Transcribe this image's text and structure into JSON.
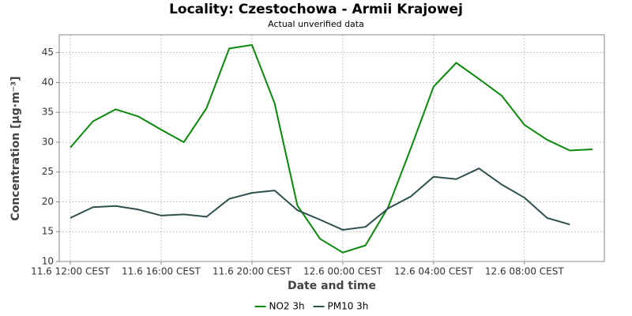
{
  "chart_data": {
    "type": "line",
    "title": "Locality: Czestochowa - Armii Krajowej",
    "subtitle": "Actual unverified data",
    "x_label": "Date and time",
    "y_label": "Concentration [µg·m⁻³]",
    "categories": [
      "11.6 12:00 CEST",
      null,
      null,
      null,
      "11.6 16:00 CEST",
      null,
      null,
      null,
      "11.6 20:00 CEST",
      null,
      null,
      null,
      "12.6 00:00 CEST",
      null,
      null,
      null,
      "12.6 04:00 CEST",
      null,
      null,
      null,
      "12.6 08:00 CEST",
      null,
      null,
      null
    ],
    "series": [
      {
        "name": "NO2 3h",
        "color": "#0a8a0a",
        "values": [
          29.1,
          33.5,
          35.5,
          34.3,
          32.1,
          30.0,
          35.7,
          45.7,
          46.3,
          36.5,
          19.4,
          13.8,
          11.5,
          12.7,
          19.1,
          29.0,
          39.3,
          43.3,
          40.6,
          37.8,
          32.9,
          30.4,
          28.6,
          28.8
        ]
      },
      {
        "name": "PM10 3h",
        "color": "#2f4f4f",
        "values": [
          17.3,
          19.1,
          19.3,
          18.7,
          17.7,
          17.9,
          17.5,
          20.5,
          21.5,
          21.9,
          18.6,
          17.0,
          15.3,
          15.8,
          18.9,
          20.9,
          24.2,
          23.8,
          25.6,
          22.9,
          20.7,
          17.3,
          16.2,
          null
        ]
      }
    ],
    "ylim": [
      10,
      48
    ],
    "yticks": [
      10,
      15,
      20,
      25,
      30,
      35,
      40,
      45
    ],
    "grid": true,
    "legend": "bottom"
  }
}
